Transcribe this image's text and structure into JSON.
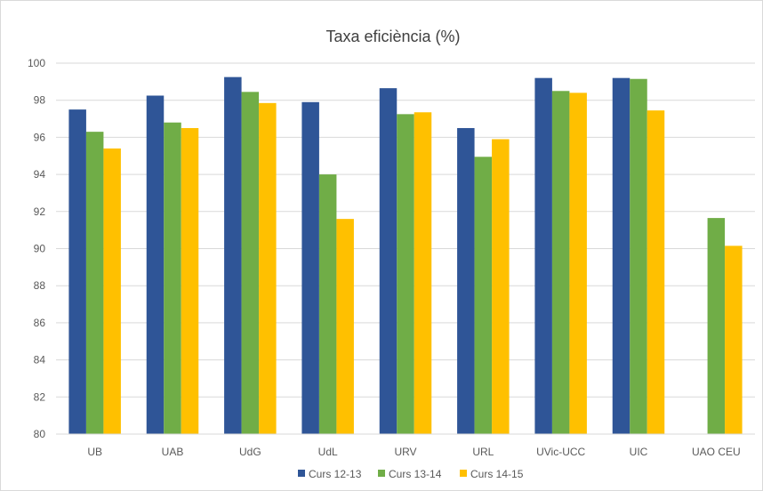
{
  "chart_data": {
    "type": "bar",
    "title": "Taxa eficiència (%)",
    "xlabel": "",
    "ylabel": "",
    "ylim": [
      80,
      100
    ],
    "yticks": [
      80,
      82,
      84,
      86,
      88,
      90,
      92,
      94,
      96,
      98,
      100
    ],
    "grid": true,
    "legend_position": "bottom",
    "categories": [
      "UB",
      "UAB",
      "UdG",
      "UdL",
      "URV",
      "URL",
      "UVic-UCC",
      "UIC",
      "UAO CEU"
    ],
    "series": [
      {
        "name": "Curs 12-13",
        "color": "#2f5597",
        "values": [
          97.5,
          98.25,
          99.25,
          97.9,
          98.65,
          96.5,
          99.2,
          99.2,
          null
        ]
      },
      {
        "name": "Curs 13-14",
        "color": "#70ad47",
        "values": [
          96.3,
          96.8,
          98.45,
          94.0,
          97.25,
          94.95,
          98.5,
          99.15,
          91.65
        ]
      },
      {
        "name": "Curs 14-15",
        "color": "#ffc000",
        "values": [
          95.4,
          96.5,
          97.85,
          91.6,
          97.35,
          95.9,
          98.4,
          97.45,
          90.15
        ]
      }
    ]
  }
}
